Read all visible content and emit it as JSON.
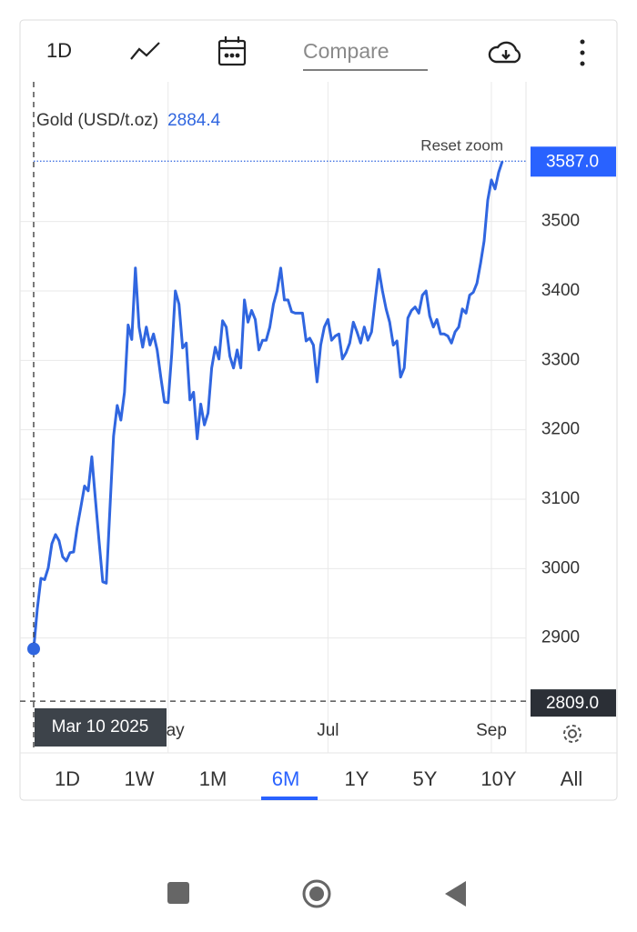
{
  "toolbar": {
    "interval": "1D",
    "compare_placeholder": "Compare"
  },
  "chart_data": {
    "type": "line",
    "series": [
      {
        "name": "Gold (USD/t.oz)",
        "color": "#3066e0",
        "values": [
          2884.4,
          2942,
          2986,
          2984,
          3001,
          3036,
          3049,
          3040,
          3017,
          3011,
          3023,
          3024,
          3060,
          3089,
          3119,
          3112,
          3161,
          3099,
          3039,
          2981,
          2979,
          3086,
          3191,
          3235,
          3214,
          3254,
          3351,
          3330,
          3433,
          3348,
          3319,
          3348,
          3322,
          3338,
          3315,
          3276,
          3240,
          3239,
          3309,
          3400,
          3381,
          3318,
          3325,
          3243,
          3254,
          3187,
          3237,
          3207,
          3224,
          3289,
          3319,
          3302,
          3357,
          3348,
          3306,
          3289,
          3315,
          3289,
          3387,
          3355,
          3372,
          3359,
          3315,
          3329,
          3329,
          3348,
          3381,
          3400,
          3433,
          3387,
          3387,
          3370,
          3368,
          3368,
          3368,
          3328,
          3332,
          3322,
          3269,
          3322,
          3348,
          3359,
          3329,
          3335,
          3338,
          3302,
          3311,
          3325,
          3355,
          3341,
          3325,
          3348,
          3329,
          3341,
          3387,
          3431,
          3400,
          3374,
          3355,
          3322,
          3328,
          3276,
          3289,
          3361,
          3372,
          3377,
          3368,
          3394,
          3400,
          3364,
          3348,
          3359,
          3338,
          3338,
          3335,
          3325,
          3341,
          3348,
          3374,
          3368,
          3394,
          3398,
          3411,
          3440,
          3472,
          3531,
          3560,
          3547,
          3571,
          3587
        ]
      }
    ],
    "legend_value": {
      "value": 2884.4,
      "label": "2884.4"
    },
    "xlim": [
      0,
      130
    ],
    "xticks": [
      {
        "value": 37,
        "label": "May"
      },
      {
        "value": 81,
        "label": "Jul"
      },
      {
        "value": 126,
        "label": "Sep"
      }
    ],
    "ylim": [
      2800,
      3700
    ],
    "yticks": [
      2900,
      3000,
      3100,
      3200,
      3300,
      3400,
      3500
    ],
    "grid": true,
    "reset_zoom": "Reset zoom",
    "last_price": {
      "value": 3587,
      "label": "3587.0"
    },
    "crosshair": {
      "date": "Mar 10 2025",
      "price": {
        "value": 2809,
        "label": "2809.0"
      }
    }
  },
  "range_buttons": [
    "1D",
    "1W",
    "1M",
    "6M",
    "1Y",
    "5Y",
    "10Y",
    "All"
  ],
  "selected_range": "6M"
}
